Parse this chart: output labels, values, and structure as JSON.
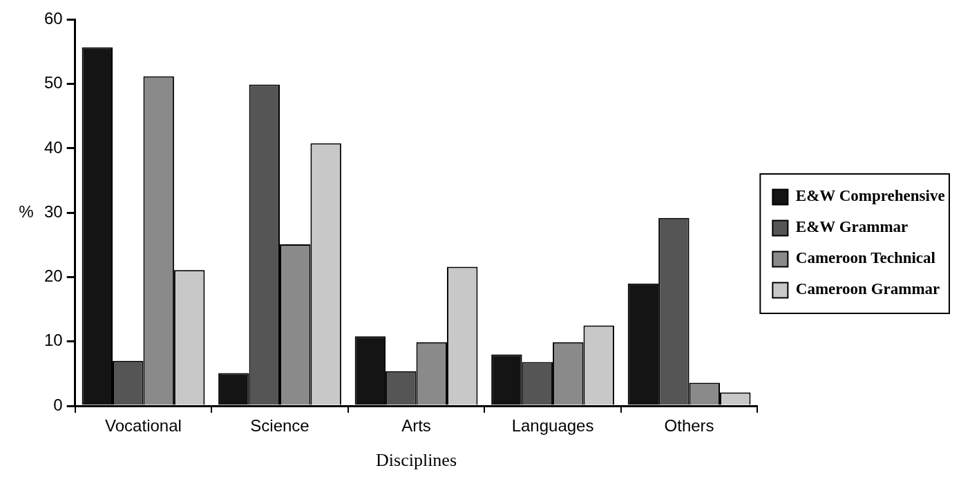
{
  "chart_data": {
    "type": "bar",
    "xlabel": "Disciplines",
    "ylabel": "%",
    "categories": [
      "Vocational",
      "Science",
      "Arts",
      "Languages",
      "Others"
    ],
    "series": [
      {
        "name": "E&W Comprehensive",
        "color": "#141414",
        "values": [
          55.7,
          5.1,
          10.8,
          8.0,
          19.0
        ]
      },
      {
        "name": "E&W Grammar",
        "color": "#555555",
        "values": [
          7.0,
          49.9,
          5.4,
          6.8,
          29.2
        ]
      },
      {
        "name": "Cameroon Technical",
        "color": "#8a8a8a",
        "values": [
          51.2,
          25.1,
          9.9,
          9.9,
          3.6
        ]
      },
      {
        "name": "Cameroon Grammar",
        "color": "#c8c8c8",
        "values": [
          21.1,
          40.8,
          21.6,
          12.5,
          2.1
        ]
      }
    ],
    "ylim": [
      0,
      60
    ],
    "yticks": [
      0,
      10,
      20,
      30,
      40,
      50,
      60
    ],
    "grid": false,
    "legend": "right"
  }
}
